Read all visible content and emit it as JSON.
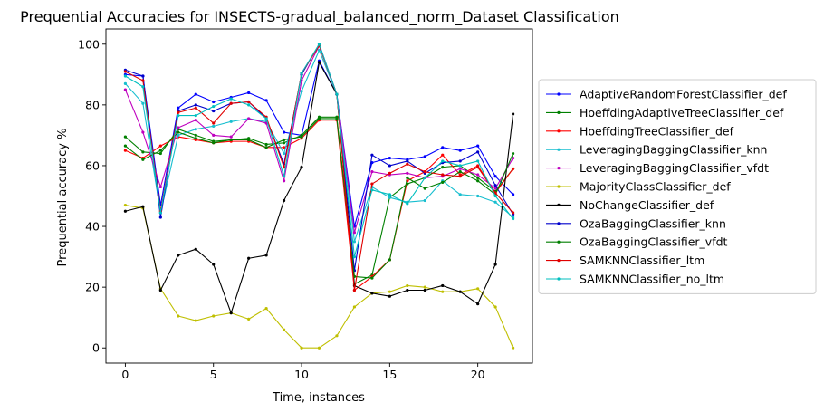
{
  "chart_data": {
    "type": "line",
    "title": "Prequential Accuracies for INSECTS-gradual_balanced_norm_Dataset Classification",
    "xlabel": "Time, instances",
    "ylabel": "Prequential accuracy %",
    "xlim": [
      -1.1,
      23.1
    ],
    "ylim": [
      -5,
      105
    ],
    "xticks": [
      0,
      5,
      10,
      15,
      20
    ],
    "yticks": [
      0,
      20,
      40,
      60,
      80,
      100
    ],
    "grid": false,
    "legend_position": "center-right outside",
    "x": [
      0,
      1,
      2,
      3,
      4,
      5,
      6,
      7,
      8,
      9,
      10,
      11,
      12,
      13,
      14,
      15,
      16,
      17,
      18,
      19,
      20,
      21,
      22
    ],
    "series": [
      {
        "name": "AdaptiveRandomForestClassifier_def",
        "color": "#0000ff",
        "values": [
          90,
          89.5,
          47,
          79,
          83.5,
          81,
          82.5,
          84,
          81.5,
          71,
          70,
          94.5,
          83.5,
          40,
          61,
          62.5,
          62,
          63,
          66,
          65,
          66.5,
          56.5,
          50.5
        ]
      },
      {
        "name": "HoeffdingAdaptiveTreeClassifier_def",
        "color": "#008000",
        "values": [
          69.5,
          64.5,
          64,
          72,
          70,
          68,
          68.5,
          69,
          67,
          67.5,
          70,
          76,
          76,
          21,
          24,
          49.5,
          54,
          56,
          59.5,
          60,
          56,
          51.5,
          59
        ]
      },
      {
        "name": "HoeffdingTreeClassifier_def",
        "color": "#ff0000",
        "values": [
          65,
          62.5,
          66.5,
          69.5,
          68.5,
          67.5,
          68,
          68,
          66,
          66,
          69,
          75,
          75,
          19,
          23.5,
          29,
          55,
          58,
          63.5,
          57,
          60,
          51,
          59
        ]
      },
      {
        "name": "LeveragingBaggingClassifier_knn",
        "color": "#17becf",
        "values": [
          87,
          80.5,
          44.5,
          70,
          72,
          73,
          74.5,
          75.5,
          74.5,
          64,
          84.5,
          98,
          83.5,
          35,
          53,
          49.5,
          48,
          48.5,
          55,
          50.5,
          50,
          48,
          43
        ]
      },
      {
        "name": "LeveragingBaggingClassifier_vfdt",
        "color": "#bf00bf",
        "values": [
          85,
          71,
          53,
          72.5,
          75,
          70,
          69.5,
          75.5,
          74,
          55,
          88,
          99.5,
          83.5,
          38,
          58,
          57,
          57.5,
          56,
          56.5,
          59,
          57,
          52.5,
          62.5
        ]
      },
      {
        "name": "MajorityClassClassifier_def",
        "color": "#bfbf00",
        "values": [
          47,
          46,
          19.5,
          10.5,
          9,
          10.5,
          11.5,
          9.5,
          13,
          6,
          0,
          0,
          4,
          13.5,
          18,
          18.5,
          20.5,
          20,
          18.5,
          18.5,
          19.5,
          13.5,
          0
        ]
      },
      {
        "name": "NoChangeClassifier_def",
        "color": "#000000",
        "values": [
          45,
          46.5,
          19,
          30.5,
          32.5,
          27.5,
          11.5,
          29.5,
          30.5,
          48.5,
          59.5,
          94,
          83.5,
          20.5,
          18,
          17,
          19,
          19,
          20.5,
          18.5,
          14.5,
          27.5,
          77
        ]
      },
      {
        "name": "OzaBaggingClassifier_knn",
        "color": "#0000cc",
        "values": [
          91.5,
          89.5,
          43,
          78,
          80,
          78,
          80.5,
          81,
          75.5,
          60.5,
          90,
          100,
          83.5,
          25.5,
          63.5,
          60,
          61.5,
          57.5,
          61,
          61.5,
          64.5,
          53.5,
          44
        ]
      },
      {
        "name": "OzaBaggingClassifier_vfdt",
        "color": "#007f00",
        "values": [
          66.5,
          62,
          65,
          71,
          69,
          67.5,
          68.5,
          68.5,
          66,
          68.5,
          69.5,
          75.5,
          75.5,
          23.5,
          23,
          29,
          56,
          52.5,
          54.5,
          58,
          55,
          50.5,
          64
        ]
      },
      {
        "name": "SAMKNNClassifier_ltm",
        "color": "#e00000",
        "values": [
          91,
          88,
          45,
          77.5,
          79,
          74,
          80.5,
          81,
          76,
          59.5,
          90.5,
          99.5,
          83.5,
          19,
          54,
          57.5,
          60.5,
          58,
          57,
          56.5,
          59.5,
          51,
          44.5
        ]
      },
      {
        "name": "SAMKNNClassifier_no_ltm",
        "color": "#00bfbf",
        "values": [
          89.5,
          86,
          44.5,
          76.5,
          76.5,
          79.5,
          82,
          80,
          75.5,
          56.5,
          90.5,
          100,
          83.5,
          30,
          52,
          50.5,
          47.5,
          56,
          61.5,
          60,
          61.5,
          50,
          42.5
        ]
      }
    ]
  }
}
